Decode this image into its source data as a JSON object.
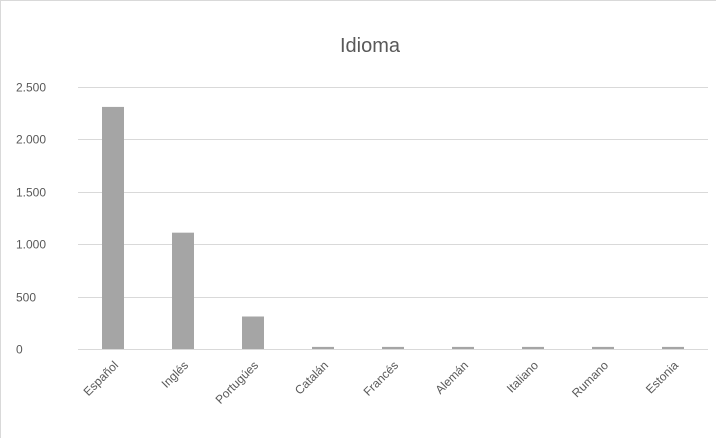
{
  "chart_data": {
    "type": "bar",
    "title": "Idioma",
    "xlabel": "",
    "ylabel": "",
    "categories": [
      "Español",
      "Inglés",
      "Portugúes",
      "Catalán",
      "Francés",
      "Alemán",
      "Italiano",
      "Rumano",
      "Estonia"
    ],
    "values": [
      2310,
      1110,
      310,
      20,
      20,
      20,
      20,
      20,
      20
    ],
    "ylim": [
      0,
      2500
    ],
    "yticks": [
      0,
      500,
      1000,
      1500,
      2000,
      2500
    ],
    "ytick_labels": [
      "0",
      "500",
      "1.000",
      "1.500",
      "2.000",
      "2.500"
    ],
    "grid": true,
    "legend": "none",
    "bar_color": "#a5a5a5"
  }
}
